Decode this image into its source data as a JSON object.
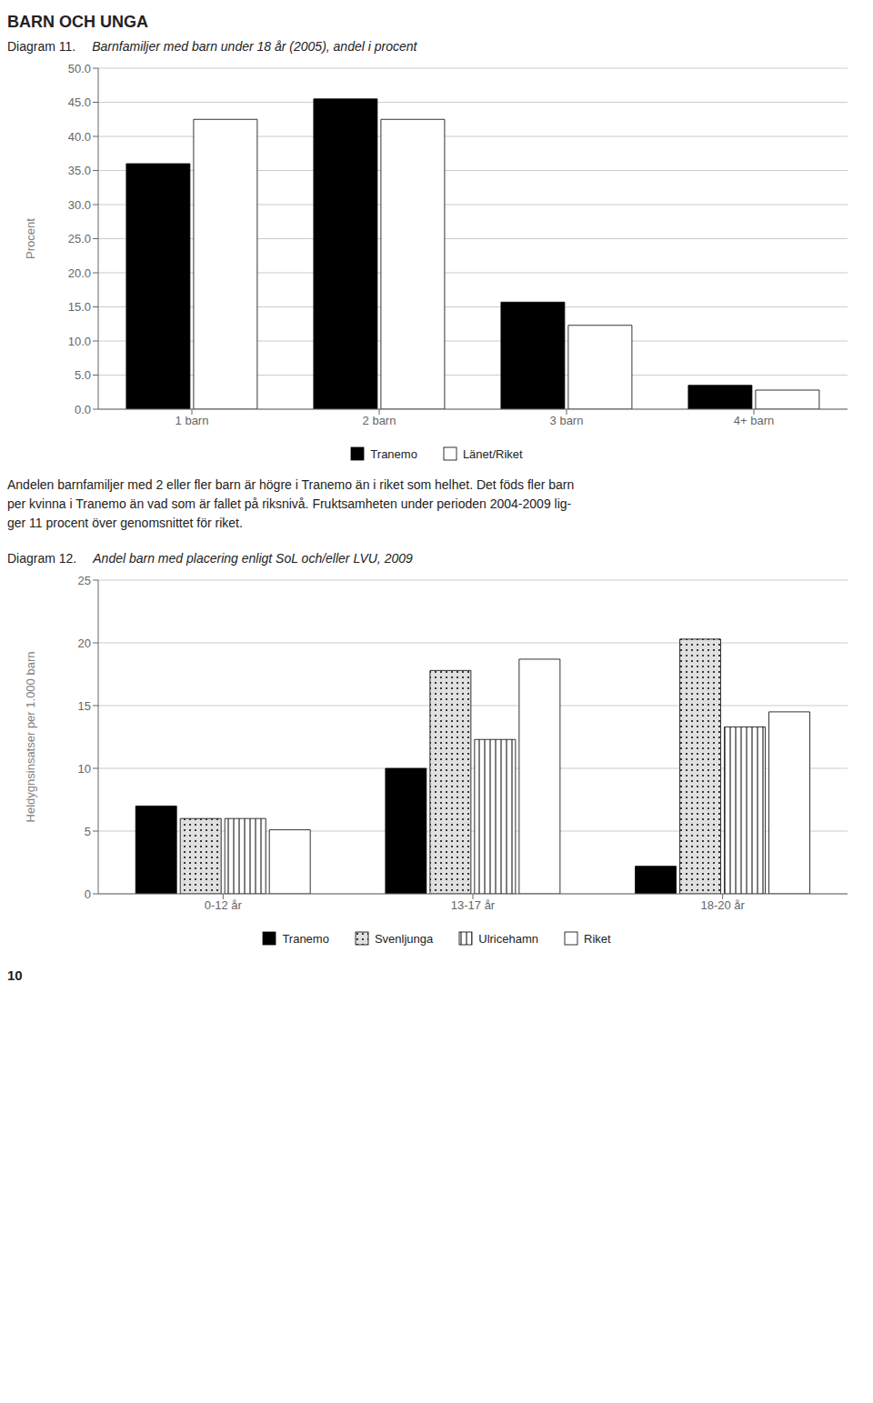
{
  "title": "BARN OCH UNGA",
  "annotations": [
    "Andelen barnfamiljer med 2 eller fler barn är högre i Tranemo än i riket som helhet. Det föds fler barn",
    "per kvinna i Tranemo än vad som är fallet på riksnivå. Fruktsamheten under perioden 2004-2009 lig-",
    "ger 11 procent över genomsnittet för riket.",
    "10"
  ],
  "chart_data": [
    {
      "type": "bar",
      "title": "Diagram 11.",
      "subtitle": "Barnfamiljer med barn under 18 år (2005), andel i procent",
      "categories": [
        "1 barn",
        "2 barn",
        "3 barn",
        "4+ barn"
      ],
      "series": [
        {
          "name": "Tranemo",
          "color": "#000000",
          "values": [
            36.0,
            45.5,
            15.7,
            3.5
          ]
        },
        {
          "name": "Länet/Riket",
          "color": "#ffffff",
          "values": [
            42.5,
            42.5,
            12.3,
            2.8
          ]
        }
      ],
      "ylabel": "Procent",
      "ylim": [
        0,
        50
      ],
      "yticks": [
        {
          "value": 0,
          "label": "0.0"
        },
        {
          "value": 5,
          "label": "5.0"
        },
        {
          "value": 10,
          "label": "10.0"
        },
        {
          "value": 15,
          "label": "15.0"
        },
        {
          "value": 20,
          "label": "20.0"
        },
        {
          "value": 25,
          "label": "25.0"
        },
        {
          "value": 30,
          "label": "30.0"
        },
        {
          "value": 35,
          "label": "35.0"
        },
        {
          "value": 40,
          "label": "40.0"
        },
        {
          "value": 45,
          "label": "45.0"
        },
        {
          "value": 50,
          "label": "50.0"
        }
      ],
      "grid": true,
      "legend": "bottom"
    },
    {
      "type": "bar",
      "title": "Diagram 12.",
      "subtitle": "Andel barn med placering enligt SoL och/eller LVU, 2009",
      "categories": [
        "0-12 år",
        "13-17 år",
        "18-20 år"
      ],
      "series": [
        {
          "name": "Tranemo",
          "color": "#000000",
          "values": [
            7.0,
            10.0,
            2.2
          ]
        },
        {
          "name": "Svenljunga",
          "color": "#e0e0e0",
          "values": [
            6.0,
            17.8,
            20.3
          ]
        },
        {
          "name": "Ulricehamn",
          "color": "#ffffff",
          "values": [
            6.0,
            12.3,
            13.3
          ]
        },
        {
          "name": "Riket",
          "color": "#ffffff",
          "values": [
            5.1,
            18.7,
            14.5
          ]
        }
      ],
      "ylabel": "Heldygnsinsatser per 1.000 barn",
      "ylim": [
        0,
        25
      ],
      "yticks": [
        0,
        5,
        10,
        15,
        20,
        25
      ],
      "grid": true,
      "legend": "bottom"
    }
  ]
}
